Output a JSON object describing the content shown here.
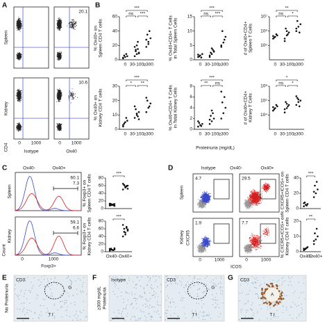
{
  "panels": {
    "A": {
      "label": "A",
      "tissues": [
        "Spleen",
        "Kidney"
      ],
      "stains": [
        "Isotype",
        "Ox40"
      ],
      "y_label": "CD4",
      "x_ticks": [
        0,
        1000
      ],
      "percentages": [
        20.1,
        10.6
      ]
    },
    "B": {
      "label": "B",
      "x_label": "Proteinuria (mg/dL)",
      "categories": [
        "0",
        "30-100",
        "≥300"
      ],
      "plots": [
        {
          "y_label": [
            "% Ox40+ on",
            "Spleen CD4 T cells"
          ],
          "ylim": [
            0,
            60
          ],
          "yticks": [
            0,
            20,
            40,
            60
          ],
          "log": false,
          "groups": [
            [
              2,
              4,
              5,
              6,
              8,
              3
            ],
            [
              5,
              8,
              10,
              12,
              15,
              18,
              20,
              9,
              14,
              25
            ],
            [
              18,
              25,
              30,
              35,
              40,
              28,
              22
            ]
          ],
          "significance": [
            "ns",
            "***",
            "***"
          ]
        },
        {
          "y_label": [
            "% Ox40+CD4+ T Cells",
            "in Total Spleen Cells"
          ],
          "ylim": [
            0,
            15
          ],
          "yticks": [
            0,
            5,
            10,
            15
          ],
          "log": false,
          "groups": [
            [
              1,
              1.5,
              2,
              1.2,
              0.8,
              1.8
            ],
            [
              1,
              2,
              3,
              2.5,
              3.5,
              1.5,
              4,
              2.8
            ],
            [
              5,
              6,
              8,
              10,
              7,
              4.5
            ]
          ],
          "significance": [
            "ns",
            "***",
            "***"
          ]
        },
        {
          "y_label": [
            "# of Ox40+CD4+",
            "Spleen T Cells"
          ],
          "ylim": [
            10000,
            10000000
          ],
          "log": true,
          "yticks": [
            {
              "value": 100000,
              "label": "10⁵"
            },
            {
              "value": 1000000,
              "label": "10⁶"
            },
            {
              "value": 10000000,
              "label": "10⁷"
            }
          ],
          "groups": [
            [
              300000,
              400000,
              500000,
              350000,
              600000,
              450000
            ],
            [
              200000,
              500000,
              800000,
              1500000,
              600000,
              300000,
              1000000
            ],
            [
              1000000,
              2000000,
              3000000,
              5000000,
              800000,
              1500000
            ]
          ],
          "significance": [
            "ns",
            "**",
            "*"
          ]
        },
        {
          "y_label": [
            "% Ox40+ on",
            "Kidney CD4 T cells"
          ],
          "ylim": [
            0,
            30
          ],
          "yticks": [
            0,
            10,
            20,
            30
          ],
          "log": false,
          "groups": [
            [
              3,
              5,
              6,
              4,
              8,
              2
            ],
            [
              8,
              10,
              12,
              14,
              9,
              16,
              11,
              7
            ],
            [
              12,
              15,
              18,
              20,
              16,
              22
            ]
          ],
          "significance": [
            "*",
            "***",
            "**"
          ]
        },
        {
          "y_label": [
            "% Ox40+CD4+ T Cells",
            "in Total Kidney Cells"
          ],
          "ylim": [
            0,
            8
          ],
          "yticks": [
            0,
            2,
            4,
            6,
            8
          ],
          "log": false,
          "groups": [
            [
              0.5,
              0.8,
              1,
              1.2,
              0.6,
              1.5
            ],
            [
              1,
              1.5,
              2,
              2.5,
              3,
              1.8,
              3.5
            ],
            [
              2,
              3,
              4,
              5,
              6,
              7
            ]
          ],
          "significance": [
            "**",
            "***",
            "ns"
          ]
        },
        {
          "y_label": [
            "# of Ox40+CD4+",
            "Kidney T Cells"
          ],
          "ylim": [
            1000,
            1000000
          ],
          "log": true,
          "yticks": [
            {
              "value": 10000,
              "label": "10⁴"
            },
            {
              "value": 100000,
              "label": "10⁵"
            },
            {
              "value": 1000000,
              "label": "10⁶"
            }
          ],
          "groups": [
            [
              20000,
              30000,
              40000,
              25000,
              50000,
              35000
            ],
            [
              15000,
              30000,
              50000,
              80000,
              40000,
              25000,
              60000
            ],
            [
              50000,
              80000,
              100000,
              150000,
              40000,
              200000,
              120000
            ]
          ],
          "significance": [
            "ns",
            "*",
            "*"
          ]
        }
      ]
    },
    "C": {
      "label": "C",
      "legend": [
        "Ox40-",
        "Ox40+"
      ],
      "colors": [
        "#3a49c9",
        "#d42020"
      ],
      "tissues": [
        "Spleen",
        "Kidney"
      ],
      "x_label": "Foxp3+",
      "y_label": "Count",
      "x_ticks": [
        0,
        1000
      ],
      "percentages": [
        [
          7.3,
          60.1
        ],
        [
          6.6,
          59.1
        ]
      ],
      "categories": [
        "Ox40-",
        "Ox40+"
      ],
      "plots": [
        {
          "y_label": [
            "% Foxp3+ on",
            "Spleen CD4 T cells"
          ],
          "ylim": [
            0,
            80
          ],
          "yticks": [
            0,
            20,
            40,
            60,
            80
          ],
          "log": false,
          "groups": [
            [
              8,
              10,
              12,
              9,
              11,
              13,
              10,
              7,
              12,
              9,
              11
            ],
            [
              50,
              55,
              60,
              62,
              58,
              65,
              57,
              52,
              61,
              59
            ]
          ],
          "significance": [
            "***"
          ]
        },
        {
          "y_label": [
            "% Foxp3+ on",
            "Kidney CD4 T cells"
          ],
          "ylim": [
            0,
            80
          ],
          "yticks": [
            0,
            20,
            40,
            60,
            80
          ],
          "log": false,
          "groups": [
            [
              3,
              5,
              6,
              8,
              4,
              7,
              5,
              9,
              6
            ],
            [
              40,
              50,
              55,
              60,
              65,
              70,
              45,
              58,
              52,
              62
            ]
          ],
          "significance": [
            "***"
          ]
        }
      ]
    },
    "D": {
      "label": "D",
      "legend": [
        "Isotype",
        "Ox40-",
        "Ox40+"
      ],
      "colors": [
        "#999999",
        "#3a49c9",
        "#d42020"
      ],
      "tissues": [
        "Spleen",
        "Kidney"
      ],
      "y_label": "CXCR5",
      "x_label": "ICOS",
      "x_ticks": [
        0,
        1000
      ],
      "percentages": [
        [
          4.7,
          29.5
        ],
        [
          1.9,
          7.7
        ]
      ],
      "categories": [
        "Ox40-",
        "Ox40+"
      ],
      "plots": [
        {
          "y_label": [
            "% CXCR5+ICOS+ on",
            "Spleen CD4 T cells"
          ],
          "ylim": [
            0,
            40
          ],
          "yticks": [
            0,
            20,
            40
          ],
          "log": false,
          "groups": [
            [
              3,
              5,
              6,
              8,
              4,
              7
            ],
            [
              15,
              20,
              25,
              30,
              35,
              22
            ]
          ],
          "significance": [
            "***"
          ]
        },
        {
          "y_label": [
            "% CXCR5+ICOS+ on",
            "Kidney CD4 T cells"
          ],
          "ylim": [
            0,
            20
          ],
          "yticks": [
            0,
            10,
            20
          ],
          "log": false,
          "groups": [
            [
              1,
              2,
              3,
              1.5,
              2.5,
              2
            ],
            [
              5,
              8,
              10,
              12,
              15,
              7
            ]
          ],
          "significance": [
            "**"
          ]
        }
      ]
    },
    "E": {
      "label": "E",
      "side_label": "No Proteinuria",
      "stain": "CD3",
      "annotations": [
        "G",
        "T I"
      ]
    },
    "F": {
      "label": "F",
      "side_label": [
        "≥300 mg/dL",
        "Proteinuria"
      ],
      "images": [
        {
          "stain": "Isotype"
        },
        {
          "stain": "CD3",
          "annotations": [
            "G",
            "T I"
          ]
        }
      ]
    },
    "G": {
      "label": "G",
      "stain": "CD3",
      "annotations": [
        "A",
        "T I"
      ]
    }
  }
}
